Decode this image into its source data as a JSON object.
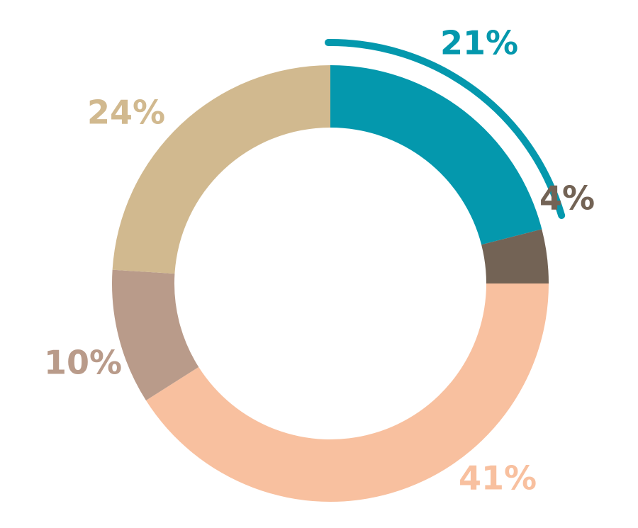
{
  "chart_data": {
    "type": "pie",
    "style": "donut",
    "slices": [
      {
        "label": "21%",
        "value": 21,
        "color": "#0498ad",
        "highlighted": true
      },
      {
        "label": "4%",
        "value": 4,
        "color": "#736355",
        "highlighted": false
      },
      {
        "label": "41%",
        "value": 41,
        "color": "#f8c09f",
        "highlighted": false
      },
      {
        "label": "10%",
        "value": 10,
        "color": "#b99b8a",
        "highlighted": false
      },
      {
        "label": "24%",
        "value": 24,
        "color": "#d1b98f",
        "highlighted": false
      }
    ]
  }
}
